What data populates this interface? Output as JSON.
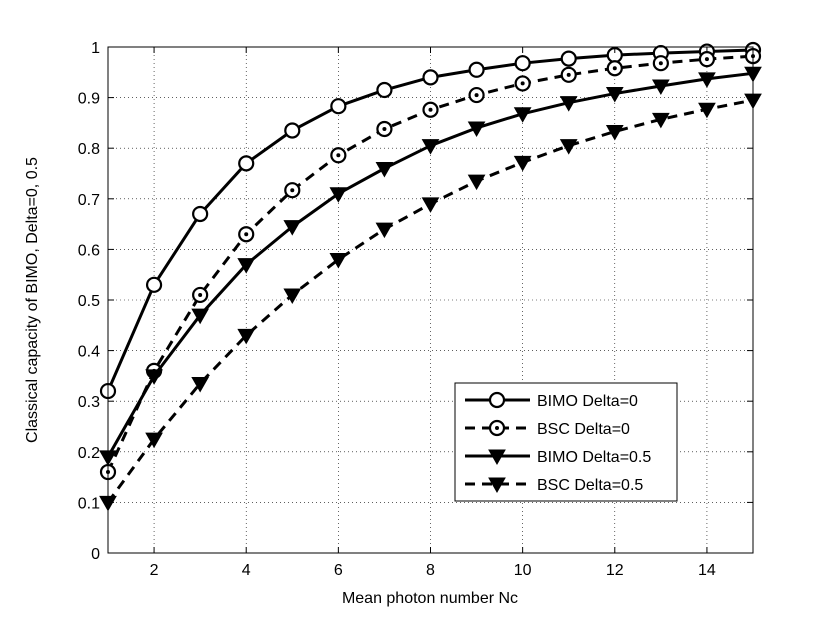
{
  "chart_data": {
    "type": "line",
    "title": "",
    "xlabel": "Mean photon number Nc",
    "ylabel": "Classical capacity of BIMO, Delta=0, 0.5",
    "xlim": [
      1,
      15
    ],
    "ylim": [
      0,
      1
    ],
    "xticks": [
      2,
      4,
      6,
      8,
      10,
      12,
      14
    ],
    "yticks": [
      0,
      0.1,
      0.2,
      0.3,
      0.4,
      0.5,
      0.6,
      0.7,
      0.8,
      0.9,
      1
    ],
    "ytick_labels": [
      "0",
      "0.1",
      "0.2",
      "0.3",
      "0.4",
      "0.5",
      "0.6",
      "0.7",
      "0.8",
      "0.9",
      "1"
    ],
    "grid": true,
    "legend_position": "lower-right",
    "x": [
      1,
      2,
      3,
      4,
      5,
      6,
      7,
      8,
      9,
      10,
      11,
      12,
      13,
      14,
      15
    ],
    "series": [
      {
        "name": "BIMO Delta=0",
        "marker": "circle",
        "line_style": "solid",
        "color": "#000000",
        "values": [
          0.32,
          0.53,
          0.67,
          0.77,
          0.835,
          0.883,
          0.915,
          0.94,
          0.955,
          0.968,
          0.977,
          0.984,
          0.988,
          0.991,
          0.994
        ]
      },
      {
        "name": "BSC  Delta=0",
        "marker": "circle-dot",
        "line_style": "dashed",
        "color": "#000000",
        "values": [
          0.16,
          0.36,
          0.51,
          0.63,
          0.717,
          0.786,
          0.838,
          0.876,
          0.905,
          0.928,
          0.945,
          0.958,
          0.968,
          0.976,
          0.982
        ]
      },
      {
        "name": "BIMO Delta=0.5",
        "marker": "triangle-down",
        "line_style": "solid",
        "color": "#000000",
        "values": [
          0.19,
          0.35,
          0.47,
          0.57,
          0.645,
          0.71,
          0.76,
          0.805,
          0.84,
          0.868,
          0.89,
          0.908,
          0.923,
          0.937,
          0.948
        ]
      },
      {
        "name": "BSC  Delta=0.5",
        "marker": "triangle-down",
        "line_style": "dashed",
        "color": "#000000",
        "values": [
          0.1,
          0.225,
          0.335,
          0.43,
          0.51,
          0.58,
          0.64,
          0.69,
          0.735,
          0.772,
          0.805,
          0.833,
          0.857,
          0.877,
          0.895
        ]
      }
    ]
  }
}
